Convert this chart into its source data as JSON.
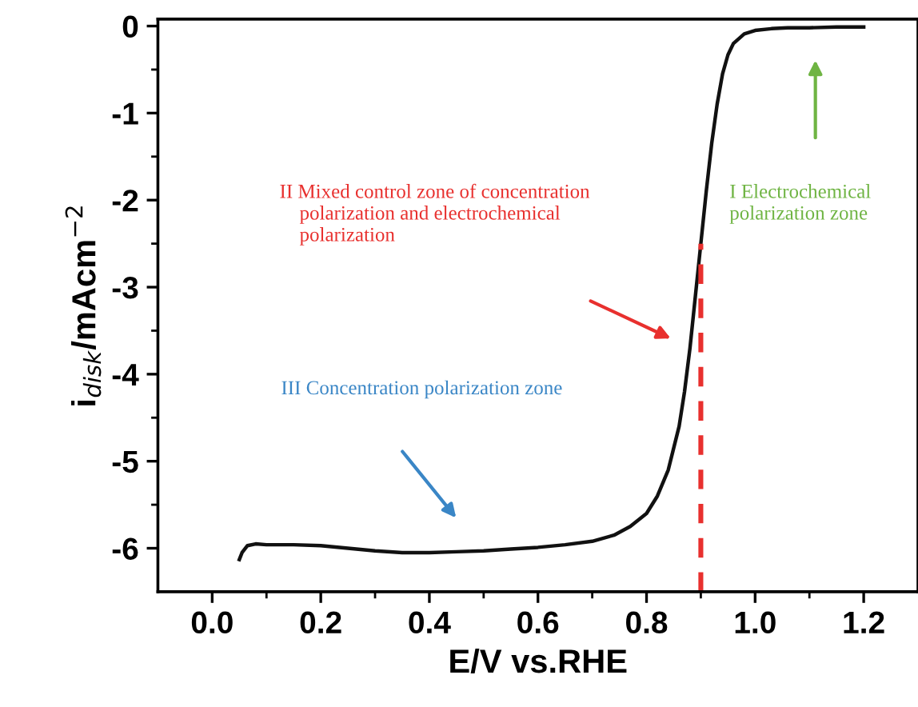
{
  "chart_data": {
    "type": "line",
    "xlabel": "E/V vs.RHE",
    "ylabel": "i$_{disk}$/mAcm$^{−2}$",
    "x": [
      0.05,
      0.055,
      0.065,
      0.08,
      0.1,
      0.15,
      0.2,
      0.25,
      0.3,
      0.35,
      0.4,
      0.45,
      0.5,
      0.55,
      0.6,
      0.65,
      0.7,
      0.74,
      0.77,
      0.8,
      0.82,
      0.84,
      0.86,
      0.87,
      0.88,
      0.89,
      0.9,
      0.91,
      0.92,
      0.93,
      0.94,
      0.95,
      0.96,
      0.98,
      1.0,
      1.03,
      1.06,
      1.1,
      1.15,
      1.2
    ],
    "series": [
      {
        "color": "#111111",
        "values": [
          -6.13,
          -6.05,
          -5.97,
          -5.95,
          -5.96,
          -5.96,
          -5.97,
          -6.0,
          -6.03,
          -6.05,
          -6.05,
          -6.04,
          -6.03,
          -6.01,
          -5.99,
          -5.96,
          -5.92,
          -5.85,
          -5.75,
          -5.6,
          -5.4,
          -5.1,
          -4.6,
          -4.2,
          -3.7,
          -3.1,
          -2.5,
          -1.9,
          -1.35,
          -0.9,
          -0.55,
          -0.33,
          -0.2,
          -0.09,
          -0.05,
          -0.03,
          -0.02,
          -0.02,
          -0.01,
          -0.01
        ]
      }
    ],
    "xlim": [
      -0.1,
      1.3
    ],
    "ylim": [
      -6.5,
      0.08
    ],
    "xticks": [
      {
        "value": 0,
        "label": "0.0"
      },
      {
        "value": 0.2,
        "label": "0.2"
      },
      {
        "value": 0.4,
        "label": "0.4"
      },
      {
        "value": 0.6,
        "label": "0.6"
      },
      {
        "value": 0.8,
        "label": "0.8"
      },
      {
        "value": 1.0,
        "label": "1.0"
      },
      {
        "value": 1.2,
        "label": "1.2"
      }
    ],
    "yticks": [
      -6,
      -5,
      -4,
      -3,
      -2,
      -1,
      0
    ],
    "ref_lines": [
      {
        "axis": "x",
        "value": 0.9,
        "color": "#e8302e",
        "line_style": "dashed"
      }
    ],
    "annotations": [
      "II Mixed control zone of concentration\n    polarization and electrochemical\n    polarization",
      "I Electrochemical\npolarization zone",
      "III Concentration polarization zone"
    ],
    "grid": false,
    "legend": false,
    "marker": "none",
    "line_style": "solid"
  }
}
